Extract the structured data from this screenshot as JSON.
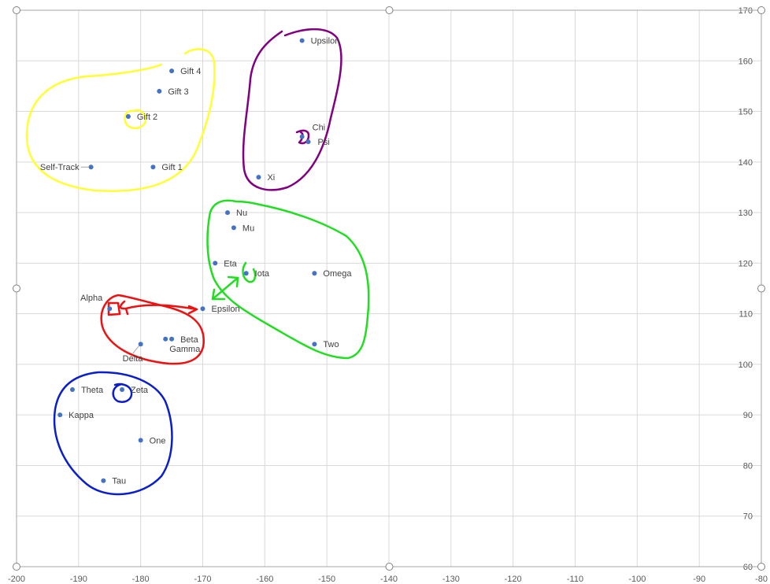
{
  "chart_data": {
    "type": "scatter",
    "title": "",
    "xlabel": "",
    "ylabel": "",
    "xlim": [
      -200,
      -80
    ],
    "ylim": [
      60,
      170
    ],
    "x_ticks": [
      -200,
      -190,
      -180,
      -170,
      -160,
      -150,
      -140,
      -130,
      -120,
      -110,
      -100,
      -90,
      -80
    ],
    "y_ticks": [
      60,
      70,
      80,
      90,
      100,
      110,
      120,
      130,
      140,
      150,
      160,
      170
    ],
    "y_axis_position": "right",
    "grid": true,
    "marker_color": "#4472c4",
    "points": [
      {
        "label": "Gift 4",
        "x": -175,
        "y": 158
      },
      {
        "label": "Gift 3",
        "x": -177,
        "y": 154
      },
      {
        "label": "Gift 2",
        "x": -182,
        "y": 149
      },
      {
        "label": "Self-Track",
        "x": -188,
        "y": 139
      },
      {
        "label": "Gift 1",
        "x": -178,
        "y": 139
      },
      {
        "label": "Upsilon",
        "x": -154,
        "y": 164
      },
      {
        "label": "Chi",
        "x": -154,
        "y": 145
      },
      {
        "label": "Psi",
        "x": -153,
        "y": 144
      },
      {
        "label": "Xi",
        "x": -161,
        "y": 137
      },
      {
        "label": "Nu",
        "x": -166,
        "y": 130
      },
      {
        "label": "Mu",
        "x": -165,
        "y": 127
      },
      {
        "label": "Eta",
        "x": -168,
        "y": 120
      },
      {
        "label": "Iota",
        "x": -163,
        "y": 118
      },
      {
        "label": "Omega",
        "x": -152,
        "y": 118
      },
      {
        "label": "Epsilon",
        "x": -170,
        "y": 111
      },
      {
        "label": "Two",
        "x": -152,
        "y": 104
      },
      {
        "label": "Alpha",
        "x": -185,
        "y": 111
      },
      {
        "label": "Beta",
        "x": -175,
        "y": 105
      },
      {
        "label": "Gamma",
        "x": -176,
        "y": 105
      },
      {
        "label": "Delta",
        "x": -180,
        "y": 104
      },
      {
        "label": "Theta",
        "x": -191,
        "y": 95
      },
      {
        "label": "Zeta",
        "x": -183,
        "y": 95
      },
      {
        "label": "Kappa",
        "x": -193,
        "y": 90
      },
      {
        "label": "One",
        "x": -180,
        "y": 85
      },
      {
        "label": "Tau",
        "x": -186,
        "y": 77
      }
    ],
    "annotations": [
      {
        "shape": "loop",
        "color": "#ffff33",
        "around": [
          "Gift 4",
          "Gift 3",
          "Gift 2",
          "Gift 1",
          "Self-Track"
        ]
      },
      {
        "shape": "loop",
        "color": "#800080",
        "around": [
          "Upsilon",
          "Chi",
          "Psi",
          "Xi"
        ]
      },
      {
        "shape": "loop",
        "color": "#22dd22",
        "around": [
          "Nu",
          "Mu",
          "Eta",
          "Iota",
          "Omega",
          "Two"
        ]
      },
      {
        "shape": "loop",
        "color": "#ee1111",
        "around": [
          "Alpha",
          "Beta",
          "Gamma",
          "Delta",
          "Epsilon"
        ]
      },
      {
        "shape": "loop",
        "color": "#0a1ecc",
        "around": [
          "Theta",
          "Zeta",
          "Kappa",
          "One",
          "Tau"
        ]
      }
    ]
  }
}
